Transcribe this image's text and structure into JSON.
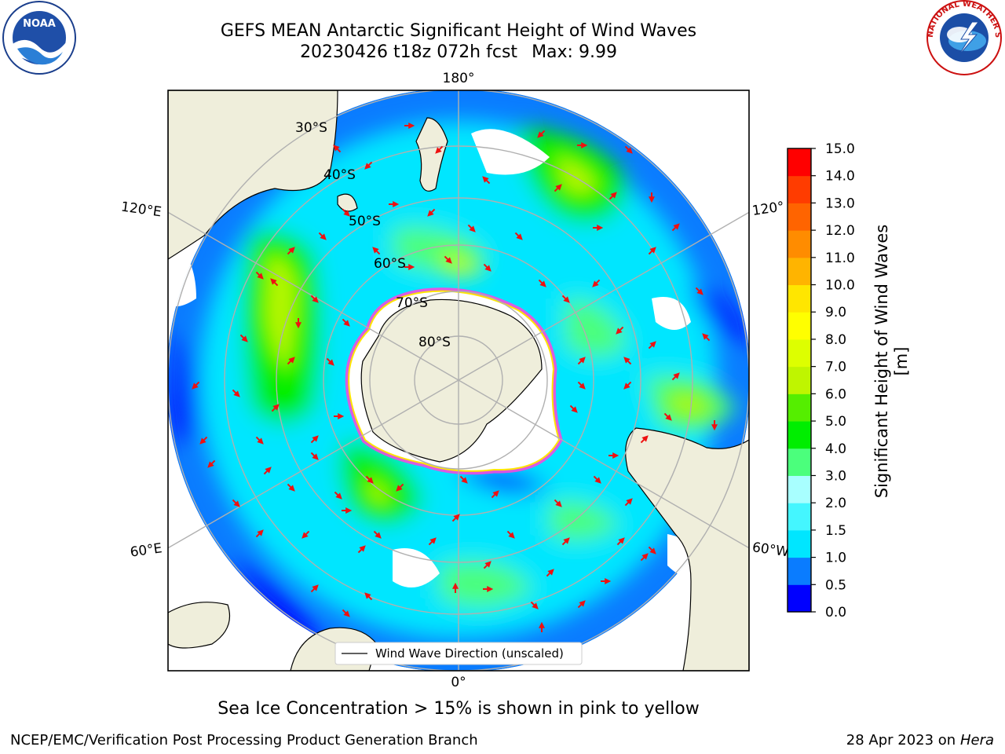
{
  "title": {
    "line1": "GEFS MEAN Antarctic Significant Height of Wind Waves",
    "line2": "20230426 t18z 072h fcst",
    "max": "Max: 9.99"
  },
  "map": {
    "lon_labels": {
      "top": "180°",
      "bottom": "0°",
      "left_upper": "120°E",
      "left_lower": "60°E",
      "right_upper": "120°",
      "right_lower": "60°W"
    },
    "lat_labels": [
      "30°S",
      "40°S",
      "50°S",
      "60°S",
      "70°S",
      "80°S"
    ],
    "legend": "Wind Wave Direction (unscaled)",
    "colors": {
      "land": "#efeedb",
      "ice_pink": "#ff44dd",
      "arrow": "#ee1111",
      "grid": "#b0b0b0"
    }
  },
  "colorbar": {
    "label": "Significant Height of Wind Waves [m]",
    "ticks": [
      "0.0",
      "0.5",
      "1.0",
      "1.5",
      "2.0",
      "3.0",
      "4.0",
      "5.0",
      "6.0",
      "7.0",
      "8.0",
      "9.0",
      "10.0",
      "11.0",
      "12.0",
      "13.0",
      "14.0",
      "15.0"
    ],
    "colors": [
      "#0000ff",
      "#0a7cff",
      "#00e6ff",
      "#44f6ff",
      "#a8ffff",
      "#4bff7c",
      "#00ee00",
      "#55ee00",
      "#bff500",
      "#ddff00",
      "#ffff00",
      "#ffe600",
      "#ffb400",
      "#ff8c00",
      "#ff6400",
      "#ff3c00",
      "#ff0000"
    ]
  },
  "footer": {
    "center": "Sea Ice Concentration > 15% is shown in pink to yellow",
    "left": "NCEP/EMC/Verification Post Processing Product Generation Branch",
    "right_date": "28 Apr 2023 on",
    "right_host": "Hera"
  },
  "logos": {
    "noaa": "NOAA",
    "nws": "NATIONAL WEATHER SERVICE"
  }
}
